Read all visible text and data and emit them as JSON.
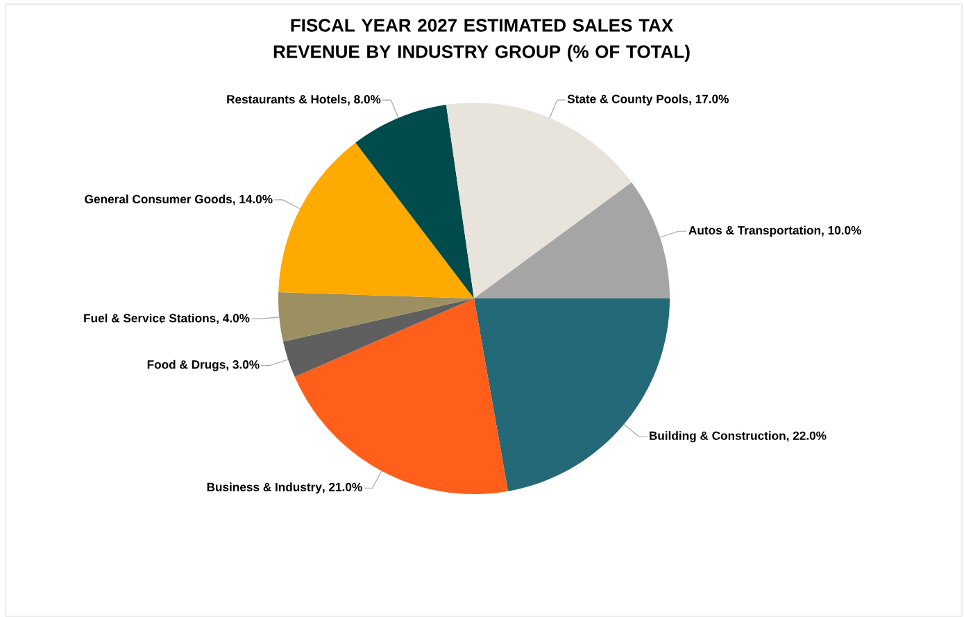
{
  "chart_data": {
    "type": "pie",
    "title": "FISCAL YEAR 2027 ESTIMATED SALES TAX REVENUE BY INDUSTRY GROUP (% OF TOTAL)",
    "categories": [
      "Building & Construction",
      "Business & Industry",
      "Food & Drugs",
      "Fuel & Service Stations",
      "General Consumer Goods",
      "Restaurants & Hotels",
      "State & County Pools",
      "Autos & Transportation"
    ],
    "values": [
      22,
      21,
      3,
      4,
      14,
      8,
      17,
      10
    ],
    "value_labels": [
      ", 22.0%",
      ", 21.0%",
      ", 3.0%",
      ", 4.0%",
      ", 14.0%",
      ", 8.0%",
      ", 17.0%",
      ", 10.0%"
    ],
    "colors": [
      "#236977",
      "#ff5f1a",
      "#5f5f5f",
      "#9c8f62",
      "#ffaa00",
      "#004c4c",
      "#e8e4dc",
      "#a5a5a5"
    ]
  }
}
